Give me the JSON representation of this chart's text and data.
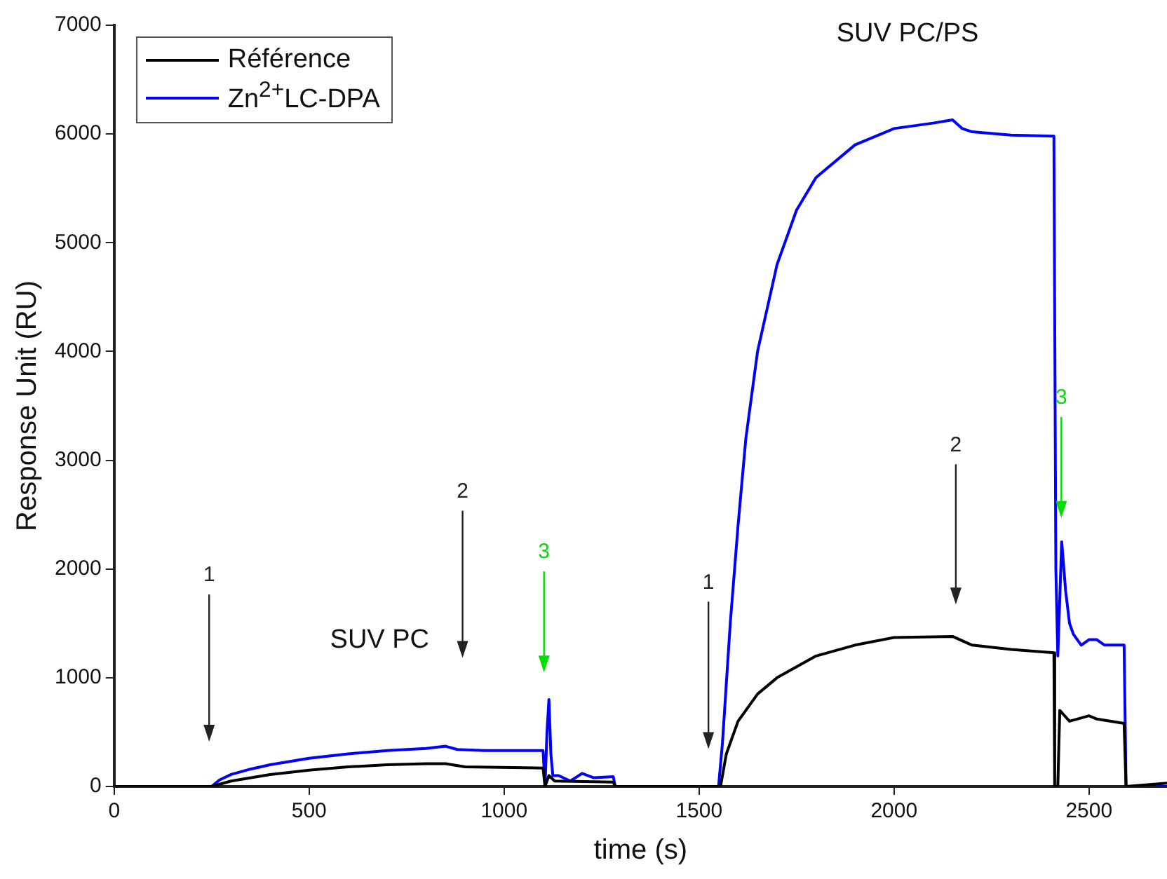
{
  "chart_data": {
    "type": "line",
    "xlabel": "time (s)",
    "ylabel": "Response Unit (RU)",
    "xlim": [
      0,
      2700
    ],
    "xticks": [
      0,
      500,
      1000,
      1500,
      2000,
      2500
    ],
    "ylim": [
      0,
      7000
    ],
    "yticks": [
      0,
      1000,
      2000,
      3000,
      4000,
      5000,
      6000,
      7000
    ],
    "grid": false,
    "legend": "top left",
    "marker": "none",
    "line_style": "solid",
    "series": [
      {
        "name": "Référence",
        "color": "#000000",
        "x": [
          0,
          250,
          300,
          400,
          500,
          600,
          700,
          800,
          850,
          900,
          1100,
          1105,
          1115,
          1130,
          1280,
          1285,
          1555,
          1570,
          1600,
          1650,
          1700,
          1800,
          1900,
          2000,
          2150,
          2200,
          2300,
          2410,
          2412,
          2420,
          2425,
          2450,
          2500,
          2520,
          2590,
          2595,
          2700
        ],
        "values": [
          0,
          0,
          50,
          110,
          150,
          180,
          200,
          210,
          210,
          180,
          170,
          0,
          100,
          50,
          40,
          0,
          0,
          300,
          600,
          850,
          1000,
          1200,
          1300,
          1370,
          1380,
          1300,
          1260,
          1230,
          0,
          0,
          700,
          600,
          650,
          620,
          580,
          0,
          30
        ]
      },
      {
        "name": "Zn$^{2+}$LC-DPA",
        "color": "#0000ff",
        "x": [
          0,
          250,
          270,
          300,
          350,
          400,
          500,
          600,
          700,
          800,
          850,
          880,
          950,
          1100,
          1105,
          1110,
          1115,
          1120,
          1125,
          1140,
          1170,
          1200,
          1230,
          1280,
          1285,
          1550,
          1560,
          1580,
          1600,
          1620,
          1650,
          1700,
          1750,
          1800,
          1900,
          2000,
          2100,
          2150,
          2175,
          2200,
          2300,
          2410,
          2415,
          2420,
          2430,
          2440,
          2450,
          2460,
          2480,
          2500,
          2520,
          2540,
          2590,
          2595,
          2700
        ],
        "values": [
          0,
          0,
          60,
          110,
          160,
          200,
          260,
          300,
          330,
          350,
          370,
          340,
          330,
          330,
          0,
          500,
          800,
          300,
          100,
          100,
          50,
          120,
          80,
          90,
          0,
          0,
          400,
          1500,
          2400,
          3200,
          4000,
          4800,
          5300,
          5600,
          5900,
          6050,
          6100,
          6130,
          6050,
          6020,
          5990,
          5980,
          2000,
          1200,
          2250,
          1800,
          1500,
          1400,
          1300,
          1350,
          1350,
          1300,
          1300,
          0,
          0
        ]
      }
    ],
    "annotations": [
      "1",
      "2",
      "3",
      "1",
      "2",
      {
        "text": "3",
        "x": 2429,
        "y": 2470
      },
      "SUV PC",
      "SUV PC/PS"
    ]
  }
}
